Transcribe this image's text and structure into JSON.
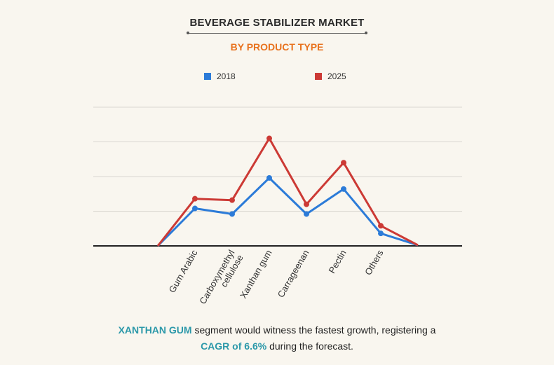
{
  "title": "BEVERAGE STABILIZER MARKET",
  "subtitle": "BY PRODUCT TYPE",
  "colors": {
    "s2018": "#2c7bd8",
    "s2025": "#cc3a35",
    "highlight": "#2b98a9",
    "subtitle": "#e8721e"
  },
  "chart_data": {
    "type": "line",
    "title": "BEVERAGE STABILIZER MARKET",
    "subtitle": "BY PRODUCT TYPE",
    "categories": [
      "",
      "Gum Arabic",
      "Carboxymethyl cellulose",
      "Xanthan gum",
      "Carrageenan",
      "Pectin",
      "Others",
      ""
    ],
    "category_labels": [
      [],
      [
        "Gum Arabic"
      ],
      [
        "Carboxymethyl",
        "cellulose"
      ],
      [
        "Xanthan gum"
      ],
      [
        "Carrageenan"
      ],
      [
        "Pectin"
      ],
      [
        "Others"
      ],
      []
    ],
    "series": [
      {
        "name": "2018",
        "values": [
          0,
          54,
          46,
          98,
          46,
          82,
          18,
          1
        ]
      },
      {
        "name": "2025",
        "values": [
          0,
          68,
          66,
          155,
          60,
          120,
          29,
          1
        ]
      }
    ],
    "ylim": [
      0,
      200
    ],
    "gridlines": [
      50,
      100,
      150,
      200
    ],
    "xlabel": "",
    "ylabel": "",
    "legend": "top-center"
  },
  "footer": {
    "line1_highlight": "XANTHAN GUM",
    "line1_text": " segment would witness the fastest growth, registering a",
    "line2_highlight": "CAGR of 6.6%",
    "line2_text": " during the forecast."
  }
}
